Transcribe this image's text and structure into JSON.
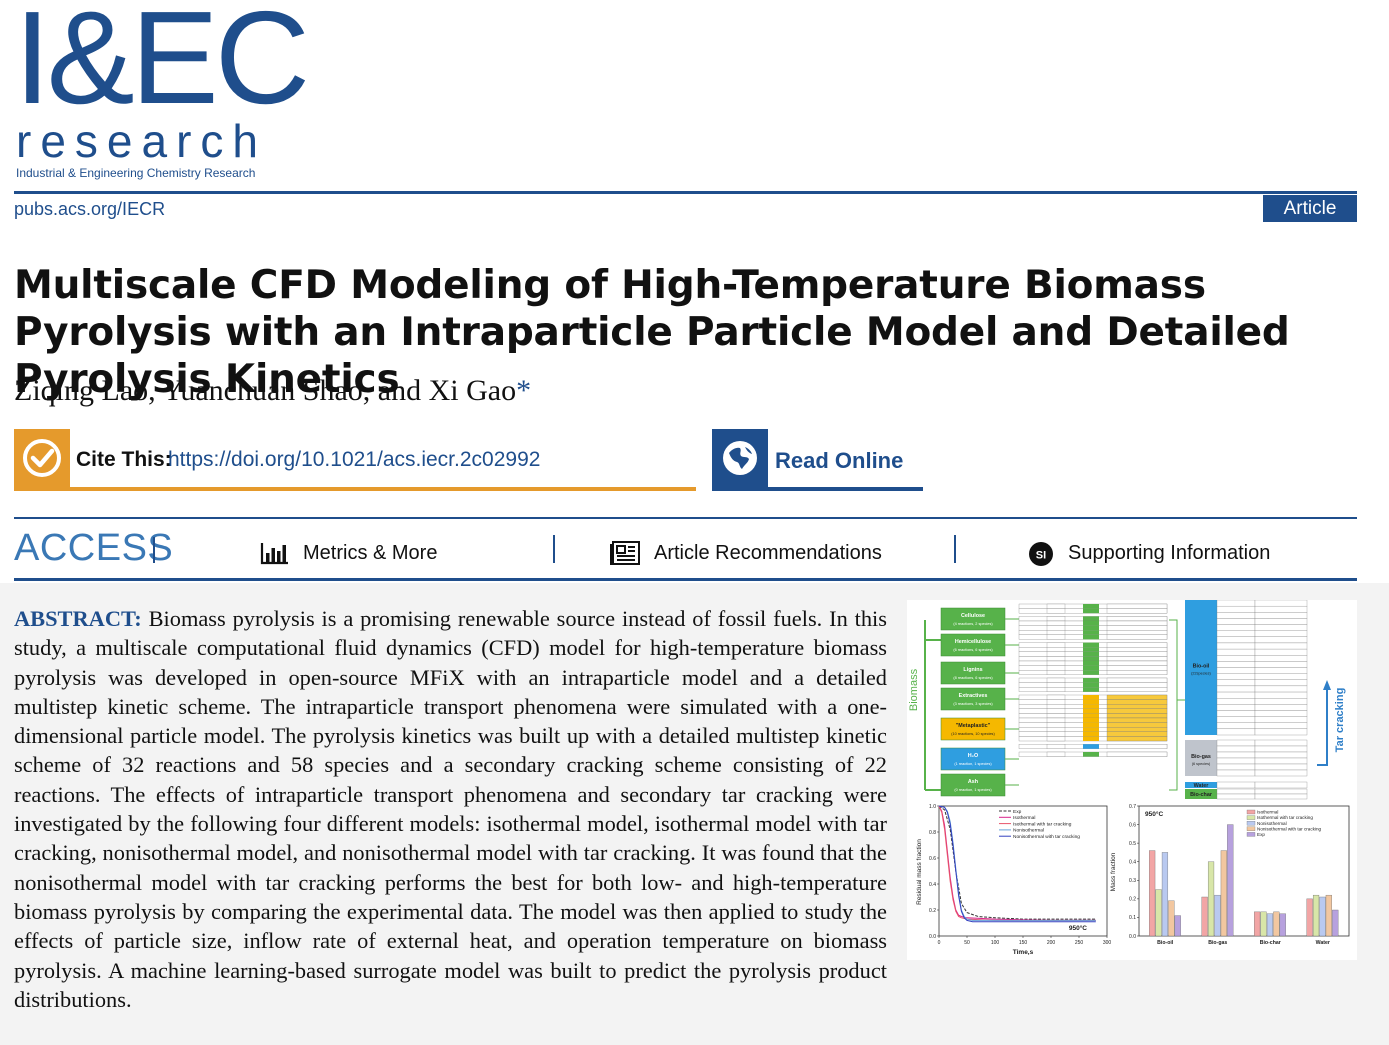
{
  "journal": {
    "logo_main": "I&EC",
    "logo_research": "research",
    "logo_subtitle": "Industrial & Engineering Chemistry Research",
    "site": "pubs.acs.org/IECR",
    "badge": "Article"
  },
  "article": {
    "title": "Multiscale CFD Modeling of High-Temperature Biomass Pyrolysis with an Intraparticle Particle Model and Detailed Pyrolysis Kinetics",
    "authors": "Ziqing Lao, Yuanchuan Shao, and Xi Gao",
    "corresponding_mark": "*",
    "cite_label": "Cite This:",
    "doi_url": "https://doi.org/10.1021/acs.iecr.2c02992",
    "read_online": "Read Online"
  },
  "access": {
    "title": "ACCESS",
    "metrics": "Metrics & More",
    "recommendations": "Article Recommendations",
    "si_badge": "SI",
    "supporting": "Supporting Information"
  },
  "abstract": {
    "label": "ABSTRACT:",
    "text": "Biomass pyrolysis is a promising renewable source instead of fossil fuels. In this study, a multiscale computational fluid dynamics (CFD) model for high-temperature biomass pyrolysis was developed in open-source MFiX with an intraparticle model and a detailed multistep kinetic scheme. The intraparticle transport phenomena were simulated with a one-dimensional particle model. The pyrolysis kinetics was built up with a detailed multistep kinetic scheme of 32 reactions and 58 species and a secondary cracking scheme consisting of 22 reactions. The effects of intraparticle transport phenomena and secondary tar cracking were investigated by the following four different models: isothermal model, isothermal model with tar cracking, nonisothermal model, and nonisothermal model with tar cracking. It was found that the nonisothermal model with tar cracking performs the best for both low- and high-temperature biomass pyrolysis by comparing the experimental data. The model was then applied to study the effects of particle size, inflow rate of external heat, and operation temperature on biomass pyrolysis. A machine learning-based surrogate model was built to predict the pyrolysis product distributions."
  },
  "toc_graphic": {
    "scheme": {
      "biomass_label": "Biomass",
      "tar_label": "Tar cracking",
      "groups": [
        {
          "name": "Cellulose",
          "sub": "(4 reactions, 2 species)"
        },
        {
          "name": "Hemicellulose",
          "sub": "(6 reactions, 6 species)"
        },
        {
          "name": "Lignins",
          "sub": "(8 reactions, 6 species)"
        },
        {
          "name": "Extractives",
          "sub": "(3 reactions, 3 species)"
        },
        {
          "name": "\"Metaplastic\"",
          "sub": "(10 reactions, 10 species)"
        },
        {
          "name": "H₂O",
          "sub": "(1 reaction, 1 species)"
        },
        {
          "name": "Ash",
          "sub": "(0 reaction, 1 species)"
        }
      ],
      "products": [
        {
          "name": "Bio-oil",
          "sub": "(22species)"
        },
        {
          "name": "Bio-gas",
          "sub": "(6 species)"
        },
        {
          "name": "Water",
          "sub": ""
        },
        {
          "name": "Bio-char",
          "sub": ""
        }
      ]
    },
    "line_chart": {
      "ylabel": "Residual mass fraction",
      "xlabel": "Time,s",
      "annotation": "950°C",
      "legend": [
        "Exp",
        "Isothermal",
        "Isothermal with tar cracking",
        "Nonisothermal",
        "Nonisothermal with tar cracking"
      ],
      "colors": [
        "#333333",
        "#d9238a",
        "#e8546a",
        "#66a3d9",
        "#3340c0"
      ],
      "xticks": [
        "0",
        "50",
        "100",
        "150",
        "200",
        "250",
        "300"
      ],
      "yticks": [
        "0.0",
        "0.2",
        "0.4",
        "0.6",
        "0.8",
        "1.0"
      ]
    },
    "bar_chart": {
      "ylabel": "Mass fraction",
      "annotation": "950°C",
      "legend": [
        "Isothermal",
        "Isothermal with tar cracking",
        "Nonisothermal",
        "Nonisothermal with tar cracking",
        "Exp"
      ],
      "colors": [
        "#f2a5a5",
        "#d8e6a8",
        "#b9c9f0",
        "#f2c7a0",
        "#b7a1de"
      ],
      "yticks": [
        "0.0",
        "0.1",
        "0.2",
        "0.3",
        "0.4",
        "0.5",
        "0.6",
        "0.7"
      ]
    }
  },
  "chart_data": [
    {
      "type": "line",
      "title": "",
      "xlabel": "Time,s",
      "ylabel": "Residual mass fraction",
      "xlim": [
        0,
        300
      ],
      "ylim": [
        0.0,
        1.0
      ],
      "legend_position": "top-right",
      "series": [
        {
          "name": "Exp",
          "x": [
            0,
            10,
            20,
            30,
            40,
            50,
            70,
            100,
            150,
            200,
            250,
            280
          ],
          "y": [
            1.0,
            0.97,
            0.82,
            0.5,
            0.25,
            0.18,
            0.15,
            0.14,
            0.13,
            0.13,
            0.13,
            0.13
          ]
        },
        {
          "name": "Isothermal",
          "x": [
            0,
            5,
            10,
            15,
            20,
            25,
            30,
            35,
            40,
            50,
            100,
            200,
            280
          ],
          "y": [
            1.0,
            0.96,
            0.85,
            0.65,
            0.45,
            0.3,
            0.2,
            0.16,
            0.15,
            0.14,
            0.13,
            0.12,
            0.12
          ]
        },
        {
          "name": "Isothermal with tar cracking",
          "x": [
            0,
            5,
            10,
            15,
            20,
            25,
            30,
            35,
            40,
            50,
            100,
            200,
            280
          ],
          "y": [
            1.0,
            0.95,
            0.82,
            0.62,
            0.42,
            0.28,
            0.19,
            0.15,
            0.14,
            0.13,
            0.12,
            0.12,
            0.12
          ]
        },
        {
          "name": "Nonisothermal",
          "x": [
            0,
            10,
            15,
            20,
            25,
            30,
            35,
            40,
            45,
            50,
            60,
            100,
            200,
            280
          ],
          "y": [
            1.0,
            0.99,
            0.96,
            0.88,
            0.72,
            0.52,
            0.33,
            0.2,
            0.15,
            0.13,
            0.12,
            0.12,
            0.12,
            0.12
          ]
        },
        {
          "name": "Nonisothermal with tar cracking",
          "x": [
            0,
            10,
            15,
            20,
            25,
            30,
            35,
            40,
            45,
            50,
            60,
            100,
            200,
            280
          ],
          "y": [
            1.0,
            0.99,
            0.95,
            0.86,
            0.7,
            0.5,
            0.31,
            0.19,
            0.14,
            0.12,
            0.11,
            0.11,
            0.11,
            0.11
          ]
        }
      ]
    },
    {
      "type": "bar",
      "title": "",
      "xlabel": "",
      "ylabel": "Mass fraction",
      "ylim": [
        0.0,
        0.7
      ],
      "legend_position": "top-right",
      "categories": [
        "Bio-oil",
        "Bio-gas",
        "Bio-char",
        "Water"
      ],
      "series": [
        {
          "name": "Isothermal",
          "values": [
            0.46,
            0.21,
            0.13,
            0.2
          ]
        },
        {
          "name": "Isothermal with tar cracking",
          "values": [
            0.25,
            0.4,
            0.13,
            0.22
          ]
        },
        {
          "name": "Nonisothermal",
          "values": [
            0.45,
            0.22,
            0.12,
            0.21
          ]
        },
        {
          "name": "Nonisothermal with tar cracking",
          "values": [
            0.19,
            0.46,
            0.13,
            0.22
          ]
        },
        {
          "name": "Exp",
          "values": [
            0.11,
            0.6,
            0.12,
            0.14
          ]
        }
      ]
    }
  ]
}
